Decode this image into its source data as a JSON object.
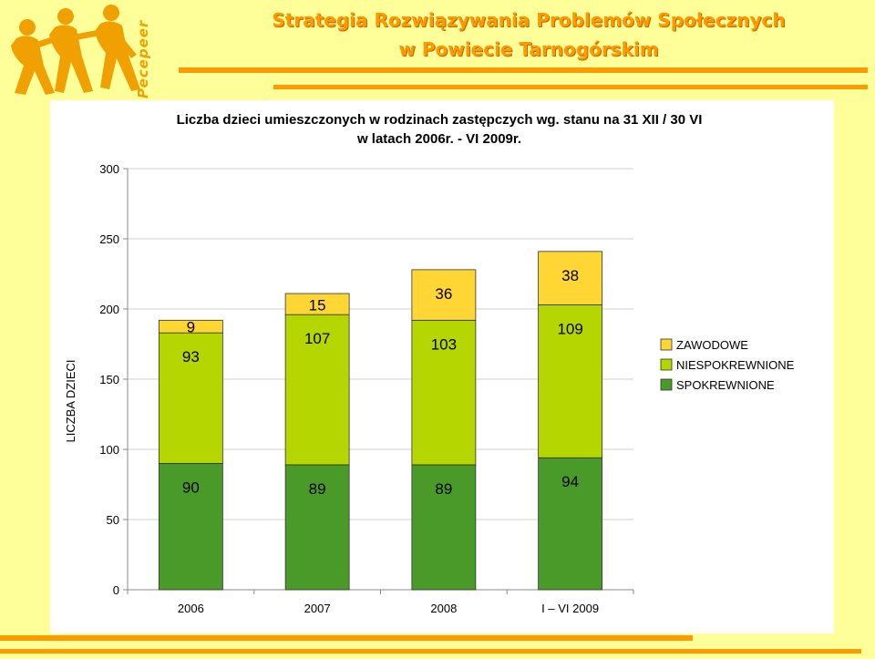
{
  "header": {
    "brand": "Pecepeer",
    "title_line1": "Strategia Rozwiązywania Problemów Społecznych",
    "title_line2": "w Powiecie Tarnogórskim"
  },
  "colors": {
    "background": "#ffff99",
    "accent": "#ff9900",
    "zawodowe": "#ffd633",
    "niespokrewnione": "#b5d600",
    "spokrewnione": "#4a9a2a"
  },
  "chart_data": {
    "type": "bar",
    "stacked": true,
    "title_line1": "Liczba dzieci umieszczonych w rodzinach zastępczych wg. stanu na 31 XII / 30 VI",
    "title_line2": "w latach 2006r. - VI 2009r.",
    "ylabel": "LICZBA DZIECI",
    "xlabel": "",
    "ylim": [
      0,
      300
    ],
    "yticks": [
      "0",
      "50",
      "100",
      "150",
      "200",
      "250",
      "300"
    ],
    "categories": [
      "2006",
      "2007",
      "2008",
      "I – VI 2009"
    ],
    "series": [
      {
        "name": "SPOKREWNIONE",
        "values": [
          90,
          89,
          89,
          94
        ],
        "labels": [
          "90",
          "89",
          "89",
          "94"
        ]
      },
      {
        "name": "NIESPOKREWNIONE",
        "values": [
          93,
          107,
          103,
          109
        ],
        "labels": [
          "93",
          "107",
          "103",
          "109"
        ]
      },
      {
        "name": "ZAWODOWE",
        "values": [
          9,
          15,
          36,
          38
        ],
        "labels": [
          "9",
          "15",
          "36",
          "38"
        ]
      }
    ],
    "legend_order": [
      "ZAWODOWE",
      "NIESPOKREWNIONE",
      "SPOKREWNIONE"
    ],
    "legend_position": "right",
    "grid": true
  }
}
